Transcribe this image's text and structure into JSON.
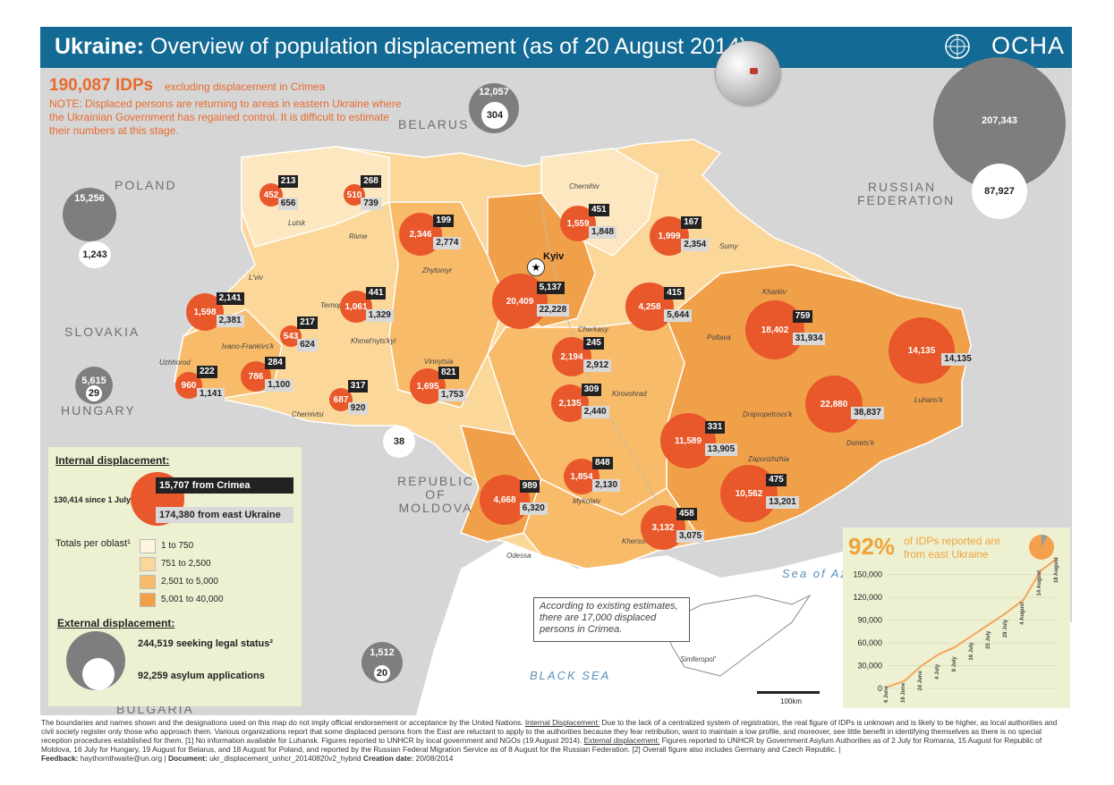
{
  "header": {
    "title_bold": "Ukraine:",
    "title_rest": "Overview of population displacement (as of 20 August 2014)",
    "org": "OCHA"
  },
  "headline": {
    "idps": "190,087 IDPs",
    "idps_sub": "excluding displacement in Crimea",
    "note": "NOTE:  Displaced persons are returning to areas in eastern Ukraine where the Ukrainian Government has regained control. It is difficult to estimate their numbers at this stage."
  },
  "countries": {
    "poland": "POLAND",
    "belarus": "BELARUS",
    "russia": "RUSSIAN FEDERATION",
    "slovakia": "SLOVAKIA",
    "hungary": "HUNGARY",
    "moldova": "REPUBLIC OF MOLDOVA",
    "bulgaria": "BULGARIA"
  },
  "seas": {
    "black_sea": "BLACK SEA",
    "azov": "Sea of Azov"
  },
  "capital": "Kyiv",
  "cities": [
    {
      "name": "Chernihiv"
    },
    {
      "name": "Sumy"
    },
    {
      "name": "Lutsk"
    },
    {
      "name": "Rivne"
    },
    {
      "name": "Zhytomyr"
    },
    {
      "name": "L'viv"
    },
    {
      "name": "Ternopil'"
    },
    {
      "name": "Khmel'nyts'kyi"
    },
    {
      "name": "Ivano-Frankivs'k"
    },
    {
      "name": "Uzhhorod"
    },
    {
      "name": "Chernivtsi"
    },
    {
      "name": "Vinnytsia"
    },
    {
      "name": "Cherkasy"
    },
    {
      "name": "Kharkiv"
    },
    {
      "name": "Poltava"
    },
    {
      "name": "Kirovohrad"
    },
    {
      "name": "Dnipropetrovs'k"
    },
    {
      "name": "Luhans'k"
    },
    {
      "name": "Donets'k"
    },
    {
      "name": "Zaporizhzhia"
    },
    {
      "name": "Mykolaiv"
    },
    {
      "name": "Odessa"
    },
    {
      "name": "Kherson"
    },
    {
      "name": "Simferopol'"
    }
  ],
  "oblasts": [
    {
      "total": "452",
      "returned": "213",
      "other": "656"
    },
    {
      "total": "510",
      "returned": "268",
      "other": "739"
    },
    {
      "total": "2,346",
      "returned": "199",
      "other": "2,774"
    },
    {
      "total": "1,559",
      "returned": "451",
      "other": "1,848"
    },
    {
      "total": "1,999",
      "returned": "167",
      "other": "2,354"
    },
    {
      "total": "1,598",
      "returned": "2,141",
      "other": "2,381"
    },
    {
      "total": "1,061",
      "returned": "441",
      "other": "1,329"
    },
    {
      "total": "543",
      "returned": "217",
      "other": "624"
    },
    {
      "total": "20,409",
      "returned": "5,137",
      "other": "22,228"
    },
    {
      "total": "4,258",
      "returned": "415",
      "other": "5,644"
    },
    {
      "total": "18,402",
      "returned": "759",
      "other": "31,934"
    },
    {
      "total": "14,135",
      "returned": "",
      "other": "14,135"
    },
    {
      "total": "960",
      "returned": "222",
      "other": "1,141"
    },
    {
      "total": "786",
      "returned": "284",
      "other": "1,100"
    },
    {
      "total": "687",
      "returned": "317",
      "other": "920"
    },
    {
      "total": "1,695",
      "returned": "821",
      "other": "1,753"
    },
    {
      "total": "2,194",
      "returned": "245",
      "other": "2,912"
    },
    {
      "total": "2,135",
      "returned": "309",
      "other": "2,440"
    },
    {
      "total": "22,880",
      "returned": "",
      "other": "38,837"
    },
    {
      "total": "11,589",
      "returned": "331",
      "other": "13,905"
    },
    {
      "total": "1,854",
      "returned": "848",
      "other": "2,130"
    },
    {
      "total": "4,668",
      "returned": "989",
      "other": "6,320"
    },
    {
      "total": "10,562",
      "returned": "475",
      "other": "13,201"
    },
    {
      "total": "3,132",
      "returned": "458",
      "other": "3,075"
    }
  ],
  "external": {
    "belarus": {
      "outer": "12,057",
      "inner": "304"
    },
    "russia": {
      "outer": "207,343",
      "inner": "87,927"
    },
    "poland": {
      "outer": "15,256",
      "inner": "1,243"
    },
    "hungary": {
      "outer": "5,615",
      "inner": "29"
    },
    "moldova": {
      "inner": "38"
    },
    "romania": {
      "outer": "1,512",
      "inner": "20"
    }
  },
  "crimea_note": "According to existing estimates, there are 17,000 displaced persons in Crimea.",
  "scale": "100km",
  "legend": {
    "internal_title": "Internal displacement:",
    "since_july": "130,414 since 1 July",
    "from_crimea": "15,707 from Crimea",
    "from_east": "174,380  from east Ukraine",
    "totals_title": "Totals per oblast¹",
    "classes": [
      {
        "label": "1 to 750",
        "color": "#fdf5de"
      },
      {
        "label": "751 to 2,500",
        "color": "#fbd79a"
      },
      {
        "label": "2,501 to 5,000",
        "color": "#f8bb6a"
      },
      {
        "label": "5,001 to 40,000",
        "color": "#f1a04a"
      }
    ],
    "external_title": "External displacement:",
    "legal_status": "244,519 seeking legal status²",
    "asylum": "92,259 asylum applications"
  },
  "inset": {
    "percent": "92%",
    "text": "of IDPs reported are from east Ukraine",
    "chart_data": {
      "type": "line",
      "y_ticks": [
        "150,000",
        "120,000",
        "90,000",
        "60,000",
        "30,000",
        "0"
      ],
      "x_labels": [
        "6 June",
        "16 June",
        "24 June",
        "4 July",
        "9 July",
        "16 July",
        "25 July",
        "29 July",
        "4 August",
        "14 August",
        "18 August"
      ],
      "ylim": [
        0,
        165000
      ],
      "x": [
        "6 June",
        "16 June",
        "24 June",
        "4 July",
        "9 July",
        "16 July",
        "25 July",
        "29 July",
        "4 August",
        "14 August",
        "18 August"
      ],
      "values": [
        2000,
        10000,
        30000,
        45000,
        55000,
        70000,
        85000,
        100000,
        117000,
        155000,
        172000
      ]
    }
  },
  "footer": {
    "text1": "The boundaries and names shown and the designations used on this map do not imply official endorsement or acceptance by the United Nations.",
    "internal_label": "Internal Displacement:",
    "text2": "Due to the lack of a centralized system of registration, the real figure of IDPs is unknown and is likely to be higher, as local authorities and civil society register only those who approach them.  Various organizations report that some displaced persons from the East are reluctant to apply to the authorities because they fear retribution, want to maintain a low profile, and moreover, see little benefit in identifying themselves as there is no special reception procedures established for them.   [1] No information available for Luhansk.  Figures reported to UNHCR by local government and NGOs (19 August 2014).",
    "external_label": "External displacement:",
    "text3": "Figures reported to UNHCR by Government Asylum Authorities as of 2 July for Romania, 15 August for Republic of Moldova, 16 July for Hungary, 19 August for Belarus, and 18 August for Poland, and reported by the Russian Federal Migration Service as of 8 August for the Russian Federation.  [2] Overall figure also includes Germany and Czech Republic.  |",
    "feedback_label": "Feedback:",
    "feedback": "haythornthwaite@un.org",
    "document_label": "Document:",
    "document": "ukr_displacement_unhcr_20140820v2_hybrid",
    "date_label": "Creation date:",
    "date": "20/08/2014"
  }
}
